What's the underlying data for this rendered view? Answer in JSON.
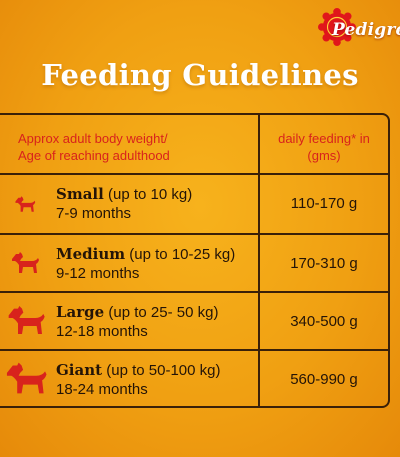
{
  "brand": {
    "name": "Pedigree",
    "wordmark": "Pedigre",
    "seal_color": "#e0161b"
  },
  "title": "Feeding Guidelines",
  "colors": {
    "background": "#f3a614",
    "header_text": "#d8231c",
    "icon": "#d8231c",
    "lines": "#3a2008",
    "title": "#ffffff"
  },
  "table": {
    "header": {
      "left_line1": "Approx adult body weight/",
      "left_line2": "Age of reaching adulthood",
      "right_line1": "daily feeding* in",
      "right_line2": "(gms)"
    },
    "rows": [
      {
        "icon": "small-dog-icon",
        "size": "Small",
        "weight": "(up to 10 kg)",
        "age": "7-9 months",
        "feeding": "110-170 g"
      },
      {
        "icon": "medium-dog-icon",
        "size": "Medium",
        "weight": "(up to 10-25 kg)",
        "age": "9-12 months",
        "feeding": "170-310 g"
      },
      {
        "icon": "large-dog-icon",
        "size": "Large",
        "weight": "(up to 25- 50 kg)",
        "age": "12-18 months",
        "feeding": "340-500 g"
      },
      {
        "icon": "giant-dog-icon",
        "size": "Giant",
        "weight": "(up to 50-100 kg)",
        "age": "18-24 months",
        "feeding": "560-990 g"
      }
    ]
  }
}
